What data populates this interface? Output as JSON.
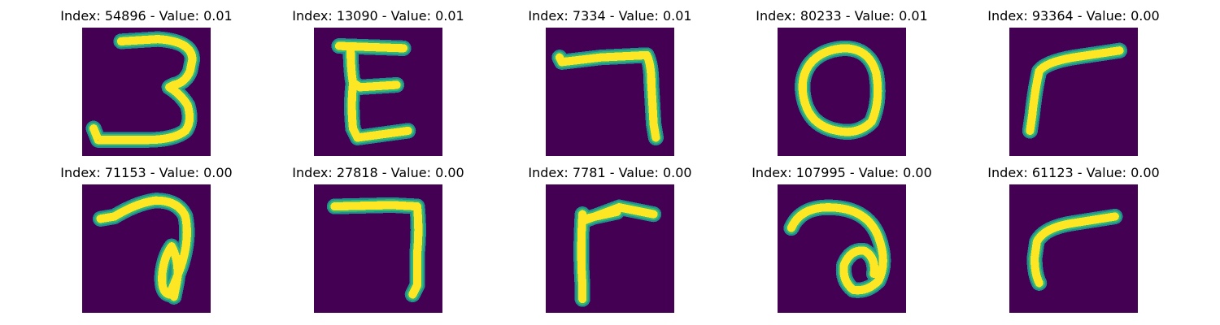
{
  "colors": {
    "background": "#440154",
    "stroke_edge": "#21908d",
    "stroke_mid": "#35b779",
    "stroke_core": "#fde725"
  },
  "panels": [
    {
      "title": "Index: 54896 - Value: 0.01",
      "index": 54896,
      "value": 0.01,
      "depicts": "handwritten digit 3"
    },
    {
      "title": "Index: 13090 - Value: 0.01",
      "index": 13090,
      "value": 0.01,
      "depicts": "handwritten E shape"
    },
    {
      "title": "Index: 7334 - Value: 0.01",
      "index": 7334,
      "value": 0.01,
      "depicts": "handwritten 7"
    },
    {
      "title": "Index: 80233 - Value: 0.01",
      "index": 80233,
      "value": 0.01,
      "depicts": "handwritten 0"
    },
    {
      "title": "Index: 93364 - Value: 0.00",
      "index": 93364,
      "value": 0.0,
      "depicts": "handwritten r shape"
    },
    {
      "title": "Index: 71153 - Value: 0.00",
      "index": 71153,
      "value": 0.0,
      "depicts": "handwritten 7 with loop"
    },
    {
      "title": "Index: 27818 - Value: 0.00",
      "index": 27818,
      "value": 0.0,
      "depicts": "handwritten 7"
    },
    {
      "title": "Index: 7781 - Value: 0.00",
      "index": 7781,
      "value": 0.0,
      "depicts": "handwritten F shape"
    },
    {
      "title": "Index: 107995 - Value: 0.00",
      "index": 107995,
      "value": 0.0,
      "depicts": "handwritten a shape"
    },
    {
      "title": "Index: 61123 - Value: 0.00",
      "index": 61123,
      "value": 0.0,
      "depicts": "handwritten r shape"
    }
  ]
}
